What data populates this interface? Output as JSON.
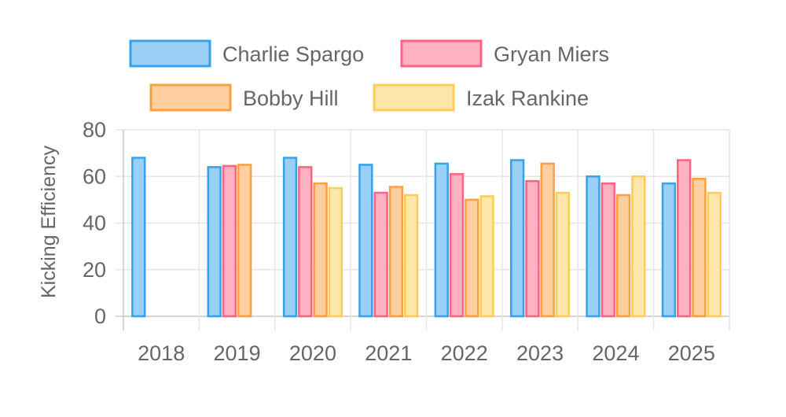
{
  "chart_data": {
    "type": "bar",
    "categories": [
      "2018",
      "2019",
      "2020",
      "2021",
      "2022",
      "2023",
      "2024",
      "2025"
    ],
    "series": [
      {
        "name": "Charlie Spargo",
        "color": "#36a2eb",
        "fill": "#9ad0f5",
        "values": [
          68,
          64,
          68,
          65,
          65.5,
          67,
          60,
          57
        ]
      },
      {
        "name": "Gryan Miers",
        "color": "#ff6384",
        "fill": "#ffb1c1",
        "values": [
          null,
          64.5,
          64,
          53,
          61,
          58,
          57,
          67
        ]
      },
      {
        "name": "Bobby Hill",
        "color": "#ff9f40",
        "fill": "#ffcf9f",
        "values": [
          null,
          65,
          57,
          55.5,
          50,
          65.5,
          52,
          59
        ]
      },
      {
        "name": "Izak Rankine",
        "color": "#ffcd56",
        "fill": "#ffe6aa",
        "values": [
          null,
          null,
          55,
          52,
          51.5,
          53,
          60,
          53
        ]
      }
    ],
    "title": "",
    "xlabel": "",
    "ylabel": "Kicking Efficiency",
    "ylim": [
      0,
      80
    ],
    "yticks": [
      "0",
      "20",
      "40",
      "60",
      "80"
    ],
    "grid": true,
    "legend_position": "top"
  }
}
